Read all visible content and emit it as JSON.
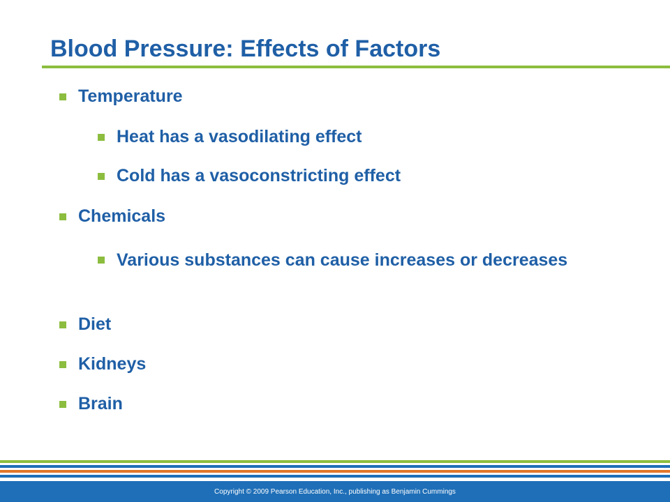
{
  "slide": {
    "title": "Blood Pressure: Effects of Factors",
    "bullets": [
      {
        "level": 1,
        "text": "Temperature"
      },
      {
        "level": 2,
        "text": "Heat has a vasodilating effect"
      },
      {
        "level": 2,
        "text": "Cold has a vasoconstricting effect"
      },
      {
        "level": 1,
        "text": "Chemicals"
      },
      {
        "level": 2,
        "text": "Various substances can cause increases or decreases"
      },
      {
        "level": 1,
        "text": "Diet"
      },
      {
        "level": 1,
        "text": "Kidneys"
      },
      {
        "level": 1,
        "text": "Brain"
      }
    ]
  },
  "footer": {
    "copyright": "Copyright © 2009 Pearson Education, Inc., publishing as Benjamin Cummings"
  },
  "colors": {
    "title": "#1f5fa6",
    "bullet_text": "#1f5fa6",
    "bullet_marker": "#8cbd3f",
    "title_rule": "#8cbd3f",
    "stripe_green": "#8cbd3f",
    "stripe_blue": "#1f6fb8",
    "stripe_orange": "#e3762b",
    "footer_bar": "#1f6fb8"
  }
}
